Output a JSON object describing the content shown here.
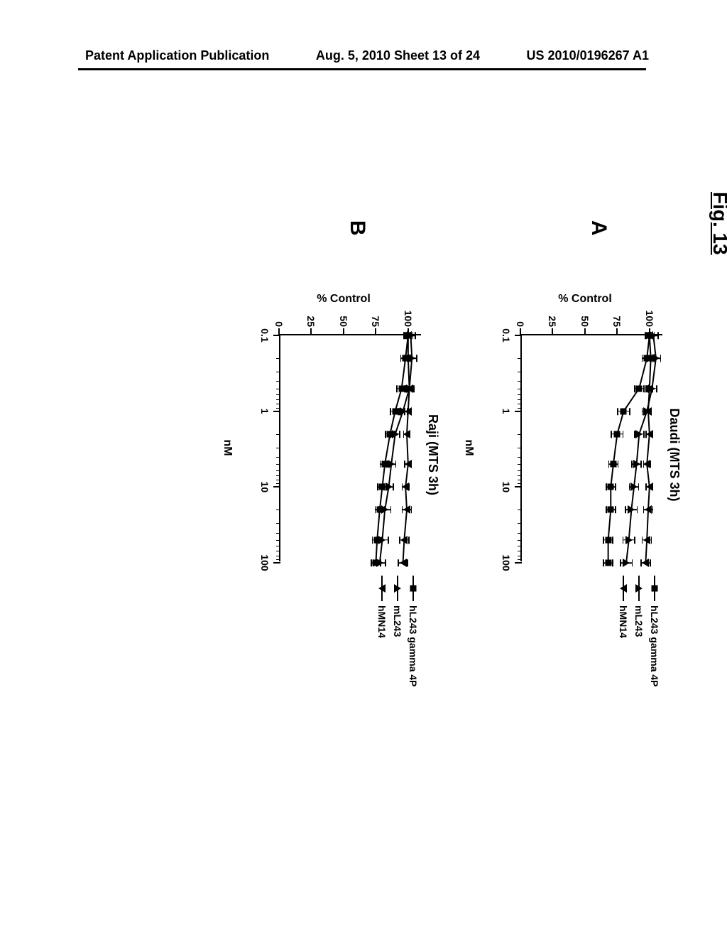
{
  "header": {
    "left": "Patent Application Publication",
    "center": "Aug. 5, 2010  Sheet 13 of 24",
    "right": "US 2010/0196267 A1"
  },
  "figure": {
    "label": "Fig. 13",
    "panels": [
      {
        "id": "A",
        "title": "Daudi (MTS 3h)",
        "ylabel": "% Control",
        "xlabel": "nM",
        "ylim": [
          0,
          110
        ],
        "yticks": [
          0,
          25,
          50,
          75,
          100
        ],
        "xlog": true,
        "xlim": [
          0.1,
          100
        ],
        "xticks": [
          0.1,
          1,
          10,
          100
        ],
        "series": [
          {
            "name": "hL243 gamma 4P",
            "marker": "square",
            "x": [
              0.1,
              0.2,
              0.5,
              1,
              2,
              5,
              10,
              20,
              50,
              100
            ],
            "y": [
              100,
              98,
              92,
              80,
              75,
              72,
              70,
              70,
              68,
              68
            ],
            "yerr": [
              4,
              4,
              4,
              5,
              5,
              4,
              4,
              4,
              4,
              4
            ]
          },
          {
            "name": "mL243",
            "marker": "triangle-up",
            "x": [
              0.1,
              0.2,
              0.5,
              1,
              2,
              5,
              10,
              20,
              50,
              100
            ],
            "y": [
              103,
              105,
              102,
              98,
              92,
              90,
              88,
              86,
              84,
              82
            ],
            "yerr": [
              4,
              4,
              4,
              4,
              4,
              4,
              4,
              5,
              5,
              5
            ]
          },
          {
            "name": "hMN14",
            "marker": "triangle-down",
            "x": [
              0.1,
              0.2,
              0.5,
              1,
              2,
              5,
              10,
              20,
              50,
              100
            ],
            "y": [
              100,
              101,
              100,
              99,
              100,
              98,
              100,
              99,
              98,
              97
            ],
            "yerr": [
              3,
              3,
              3,
              3,
              3,
              3,
              3,
              4,
              4,
              4
            ]
          }
        ]
      },
      {
        "id": "B",
        "title": "Raji (MTS 3h)",
        "ylabel": "% Control",
        "xlabel": "nM",
        "ylim": [
          0,
          110
        ],
        "yticks": [
          0,
          25,
          50,
          75,
          100
        ],
        "xlog": true,
        "xlim": [
          0.1,
          100
        ],
        "xticks": [
          0.1,
          1,
          10,
          100
        ],
        "series": [
          {
            "name": "hL243 gamma 4P",
            "marker": "square",
            "x": [
              0.1,
              0.2,
              0.5,
              1,
              2,
              5,
              10,
              20,
              50,
              100
            ],
            "y": [
              100,
              98,
              95,
              90,
              86,
              82,
              80,
              78,
              76,
              75
            ],
            "yerr": [
              4,
              4,
              4,
              4,
              4,
              4,
              4,
              4,
              4,
              4
            ]
          },
          {
            "name": "mL243",
            "marker": "triangle-up",
            "x": [
              0.1,
              0.2,
              0.5,
              1,
              2,
              5,
              10,
              20,
              50,
              100
            ],
            "y": [
              102,
              103,
              101,
              96,
              90,
              87,
              85,
              82,
              80,
              78
            ],
            "yerr": [
              4,
              4,
              4,
              4,
              4,
              4,
              4,
              5,
              5,
              5
            ]
          },
          {
            "name": "hMN14",
            "marker": "triangle-down",
            "x": [
              0.1,
              0.2,
              0.5,
              1,
              2,
              5,
              10,
              20,
              50,
              100
            ],
            "y": [
              100,
              100,
              101,
              100,
              99,
              100,
              98,
              99,
              97,
              96
            ],
            "yerr": [
              3,
              3,
              3,
              3,
              3,
              3,
              3,
              4,
              4,
              4
            ]
          }
        ]
      }
    ],
    "colors": {
      "line": "#000000",
      "marker": "#000000",
      "background": "#ffffff"
    },
    "line_width": 2
  }
}
